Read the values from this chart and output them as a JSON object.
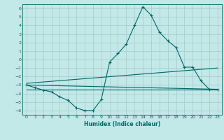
{
  "title": "",
  "xlabel": "Humidex (Indice chaleur)",
  "xlim": [
    -0.5,
    23.5
  ],
  "ylim": [
    -6.5,
    6.5
  ],
  "yticks": [
    -6,
    -5,
    -4,
    -3,
    -2,
    -1,
    0,
    1,
    2,
    3,
    4,
    5,
    6
  ],
  "xticks": [
    0,
    1,
    2,
    3,
    4,
    5,
    6,
    7,
    8,
    9,
    10,
    11,
    12,
    13,
    14,
    15,
    16,
    17,
    18,
    19,
    20,
    21,
    22,
    23
  ],
  "bg_color": "#c2e8e8",
  "grid_color": "#a8d0d0",
  "line_color": "#006868",
  "main_x": [
    0,
    1,
    2,
    3,
    4,
    5,
    6,
    7,
    8,
    9,
    10,
    11,
    12,
    13,
    14,
    15,
    16,
    17,
    18,
    19,
    20,
    21,
    22,
    23
  ],
  "main_y": [
    -3.0,
    -3.3,
    -3.6,
    -3.8,
    -4.4,
    -4.8,
    -5.7,
    -6.0,
    -6.0,
    -4.7,
    -0.3,
    0.7,
    1.8,
    4.0,
    6.2,
    5.2,
    3.2,
    2.2,
    1.4,
    -0.9,
    -0.9,
    -2.5,
    -3.5,
    -3.5
  ],
  "trend1_x": [
    0,
    23
  ],
  "trend1_y": [
    -3.0,
    -3.5
  ],
  "trend2_x": [
    0,
    23
  ],
  "trend2_y": [
    -2.8,
    -1.0
  ],
  "trend3_x": [
    0,
    23
  ],
  "trend3_y": [
    -3.5,
    -3.5
  ]
}
